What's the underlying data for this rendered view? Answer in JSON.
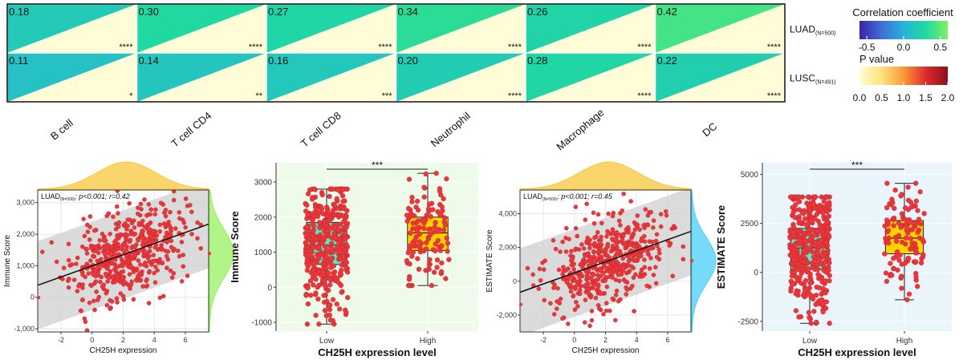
{
  "chart_data": [
    {
      "type": "heatmap",
      "rows": [
        "LUAD",
        "LUSC"
      ],
      "row_subscripts": [
        "(N=500)",
        "(N=491)"
      ],
      "columns": [
        "B cell",
        "T cell CD4",
        "T cell CD8",
        "Neutrophil",
        "Macrophage",
        "DC"
      ],
      "correlation": [
        [
          0.18,
          0.3,
          0.27,
          0.34,
          0.26,
          0.42
        ],
        [
          0.11,
          0.14,
          0.16,
          0.2,
          0.28,
          0.22
        ]
      ],
      "significance": [
        [
          "****",
          "****",
          "****",
          "****",
          "****",
          "****"
        ],
        [
          "*",
          "**",
          "***",
          "****",
          "****",
          "****"
        ]
      ],
      "legend_correlation": {
        "title": "Correlation coefficient",
        "ticks": [
          "-0.5",
          "0.0",
          "0.5"
        ],
        "range": [
          -0.6,
          0.6
        ]
      },
      "legend_pvalue": {
        "title": "P value",
        "ticks": [
          "0.0",
          "0.5",
          "1.0",
          "1.5",
          "2.0"
        ],
        "range": [
          0,
          2
        ]
      }
    },
    {
      "type": "scatter",
      "annotation": {
        "prefix": "LUAD",
        "sub": "(N=500)",
        "text": "; p<0.001; r=0.42"
      },
      "xlabel": "CH25H expression",
      "ylabel": "Immune Score",
      "xlim": [
        -3.5,
        7.5
      ],
      "ylim": [
        -1100,
        3400
      ],
      "xticks": [
        -2,
        0,
        2,
        4,
        6
      ],
      "yticks": [
        -1000,
        0,
        1000,
        2000,
        3000
      ],
      "ytick_labels": [
        "-1,000",
        "0",
        "1,000",
        "2,000",
        "3,000"
      ],
      "fit": {
        "x0": -3.5,
        "y0": 380,
        "x1": 7.5,
        "y1": 2320
      },
      "band_halfwidth": 1400,
      "n_points": 500,
      "x_mean": 2.2,
      "x_sd": 1.8,
      "y_sd_resid": 700,
      "x_marginal_color": "#f7c73b",
      "y_marginal_color": "#98f05f",
      "point_color": "#e8383d",
      "seed": 11
    },
    {
      "type": "box",
      "xlabel": "CH25H expression level",
      "ylabel": "Immune Score",
      "categories": [
        "Low",
        "High"
      ],
      "ylim": [
        -1250,
        3550
      ],
      "yticks": [
        -1000,
        0,
        1000,
        2000,
        3000
      ],
      "ytick_labels": [
        "-1000",
        "0",
        "1000",
        "2000",
        "3000"
      ],
      "boxes": [
        {
          "min": -1050,
          "q1": 650,
          "median": 1200,
          "q3": 1850,
          "max": 2800,
          "n": 380,
          "color": "#5be8c0"
        },
        {
          "min": 50,
          "q1": 1050,
          "median": 1550,
          "q3": 2000,
          "max": 3250,
          "n": 120,
          "color": "#ffd200"
        }
      ],
      "significance": "***",
      "background": "#eefbea",
      "point_color": "#e8383d",
      "seed": 23
    },
    {
      "type": "scatter",
      "annotation": {
        "prefix": "LUAD",
        "sub": "(N=500)",
        "text": "; p<0.001; r=0.45"
      },
      "xlabel": "CH25H expression",
      "ylabel": "ESTIMATE Score",
      "xlim": [
        -3.5,
        7.5
      ],
      "ylim": [
        -3000,
        5400
      ],
      "xticks": [
        -2,
        0,
        2,
        4,
        6
      ],
      "yticks": [
        -2000,
        0,
        2000,
        4000
      ],
      "ytick_labels": [
        "-2,000",
        "0",
        "2,000",
        "4,000"
      ],
      "fit": {
        "x0": -3.5,
        "y0": -650,
        "x1": 7.5,
        "y1": 2950
      },
      "band_halfwidth": 2600,
      "n_points": 500,
      "x_mean": 2.2,
      "x_sd": 1.8,
      "y_sd_resid": 1250,
      "x_marginal_color": "#f7c73b",
      "y_marginal_color": "#49cdf6",
      "point_color": "#e8383d",
      "seed": 37
    },
    {
      "type": "box",
      "xlabel": "CH25H expression level",
      "ylabel": "ESTIMATE Score",
      "categories": [
        "Low",
        "High"
      ],
      "ylim": [
        -3000,
        5600
      ],
      "yticks": [
        -2500,
        0,
        2500,
        5000
      ],
      "ytick_labels": [
        "-2500",
        "0",
        "2500",
        "5000"
      ],
      "boxes": [
        {
          "min": -2600,
          "q1": 150,
          "median": 1250,
          "q3": 2250,
          "max": 3850,
          "n": 380,
          "color": "#5be8c0"
        },
        {
          "min": -1400,
          "q1": 950,
          "median": 1750,
          "q3": 2650,
          "max": 4550,
          "n": 120,
          "color": "#ffd200"
        }
      ],
      "significance": "***",
      "background": "#eaf4fb",
      "point_color": "#e8383d",
      "seed": 53
    }
  ]
}
